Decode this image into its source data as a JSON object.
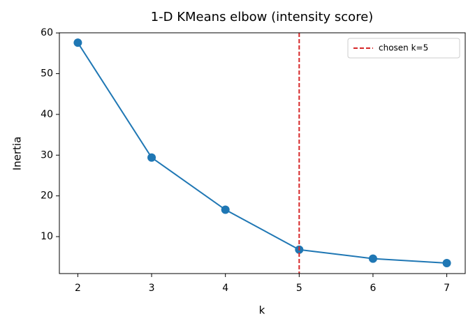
{
  "chart_data": {
    "type": "line",
    "title": "1-D KMeans elbow (intensity score)",
    "x_label": "k",
    "y_label": "Inertia",
    "x": [
      2,
      3,
      4,
      5,
      6,
      7
    ],
    "series": [
      {
        "color": "#1f77b4",
        "values": [
          57.6,
          29.4,
          16.6,
          6.8,
          4.6,
          3.5
        ]
      }
    ],
    "xlim": [
      1.75,
      7.25
    ],
    "xticks": [
      2,
      3,
      4,
      5,
      6,
      7
    ],
    "ylim": [
      0.93,
      60.03
    ],
    "yticks": [
      10,
      20,
      30,
      40,
      50,
      60
    ],
    "vline": {
      "x": 5,
      "label": "chosen k=5",
      "color": "#d62728"
    },
    "legend": "upper right",
    "grid": false
  }
}
